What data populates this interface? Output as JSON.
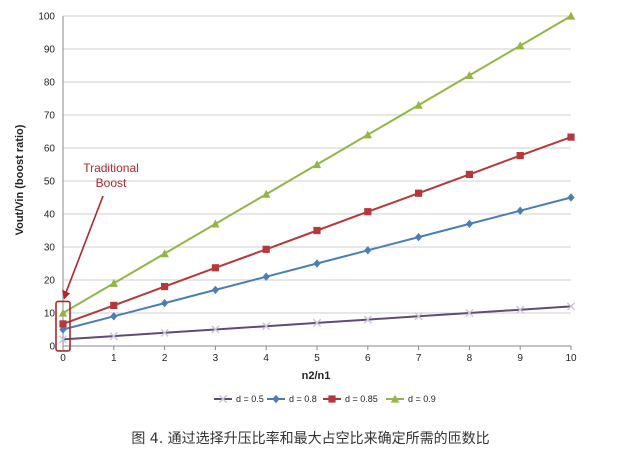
{
  "caption": "图 4. 通过选择升压比率和最大占空比来确定所需的匝数比",
  "colors": {
    "d05": "#5e4b7a",
    "d08": "#4a7eb4",
    "d085": "#b5393b",
    "d09": "#93b647",
    "annotation": "#b0262b",
    "grid": "#cfcfcf",
    "axis": "#888888"
  },
  "chart_data": {
    "type": "line",
    "title": "",
    "xlabel": "n2/n1",
    "ylabel": "Vout/Vin (boost ratio)",
    "xlim": [
      0,
      10
    ],
    "ylim": [
      0,
      100
    ],
    "x_ticks": [
      "0",
      "1",
      "2",
      "3",
      "4",
      "5",
      "6",
      "7",
      "8",
      "9",
      "10"
    ],
    "y_ticks": [
      "0",
      "10",
      "20",
      "30",
      "40",
      "50",
      "60",
      "70",
      "80",
      "90",
      "100"
    ],
    "grid": "horizontal",
    "legend_position": "bottom",
    "x": [
      0,
      1,
      2,
      3,
      4,
      5,
      6,
      7,
      8,
      9,
      10
    ],
    "series": [
      {
        "name": "d = 0.5",
        "marker": "x",
        "color": "#5e4b7a",
        "values": [
          2,
          3,
          4,
          5,
          6,
          7,
          8,
          9,
          10,
          11,
          12
        ]
      },
      {
        "name": "d = 0.8",
        "marker": "diamond",
        "color": "#4a7eb4",
        "values": [
          5,
          9,
          13,
          17,
          21,
          25,
          29,
          33,
          37,
          41,
          45
        ]
      },
      {
        "name": "d = 0.85",
        "marker": "square",
        "color": "#b5393b",
        "values": [
          6.7,
          12.3,
          18,
          23.7,
          29.3,
          35,
          40.7,
          46.3,
          52,
          57.7,
          63.3
        ]
      },
      {
        "name": "d = 0.9",
        "marker": "triangle",
        "color": "#93b647",
        "values": [
          10,
          19,
          28,
          37,
          46,
          55,
          64,
          73,
          82,
          91,
          100
        ]
      }
    ],
    "annotations": [
      {
        "text_lines": [
          "Traditional",
          "Boost"
        ],
        "points_to_x": 0
      }
    ]
  }
}
